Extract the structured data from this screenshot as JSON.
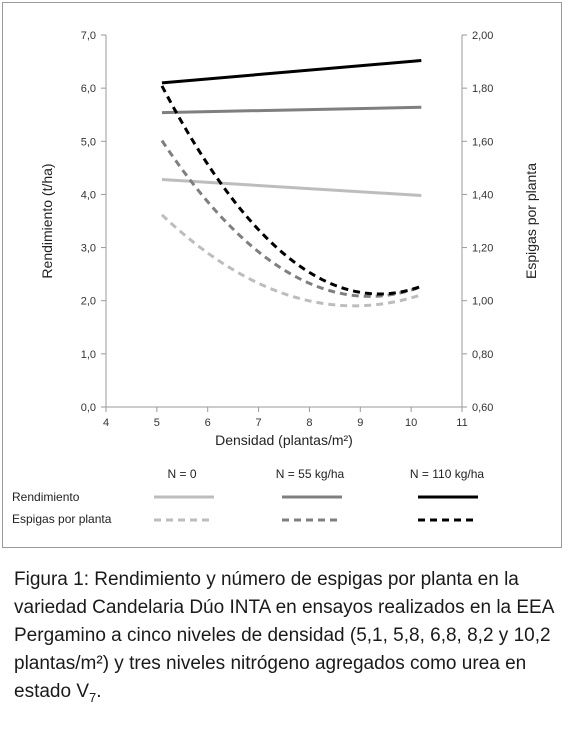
{
  "chart_data": {
    "type": "line",
    "xlabel": "Densidad (plantas/m²)",
    "ylabel": "Rendimiento (t/ha)",
    "y2label": "Espigas por planta",
    "xlim": [
      4,
      11
    ],
    "ylim": [
      0,
      7
    ],
    "y2lim": [
      0.6,
      2.0
    ],
    "x_ticks": [
      "4",
      "5",
      "6",
      "7",
      "8",
      "9",
      "10",
      "11"
    ],
    "y_ticks": [
      "0,0",
      "1,0",
      "2,0",
      "3,0",
      "4,0",
      "5,0",
      "6,0",
      "7,0"
    ],
    "y2_ticks": [
      "0,60",
      "0,80",
      "1,00",
      "1,20",
      "1,40",
      "1,60",
      "1,80",
      "2,00"
    ],
    "grid": false,
    "legend_columns": [
      "N = 0",
      "N = 55 kg/ha",
      "N = 110 kg/ha"
    ],
    "legend_rows": [
      "Rendimiento",
      "Espigas por planta"
    ],
    "series": [
      {
        "label": "Rendimiento N = 0",
        "axis": "left",
        "style": "solid",
        "color": "#bdbdbd",
        "x": [
          5.1,
          10.2
        ],
        "y": [
          4.28,
          3.98
        ]
      },
      {
        "label": "Rendimiento N = 55 kg/ha",
        "axis": "left",
        "style": "solid",
        "color": "#7f7f7f",
        "x": [
          5.1,
          10.2
        ],
        "y": [
          5.54,
          5.64
        ]
      },
      {
        "label": "Rendimiento N = 110 kg/ha",
        "axis": "left",
        "style": "solid",
        "color": "#000000",
        "x": [
          5.1,
          10.2
        ],
        "y": [
          6.1,
          6.52
        ]
      },
      {
        "label": "Espigas por planta N = 0",
        "axis": "right",
        "style": "dashed",
        "color": "#bdbdbd",
        "x": [
          5.1,
          5.8,
          6.8,
          8.2,
          10.2
        ],
        "y": [
          1.33,
          1.2,
          1.08,
          1.0,
          1.02
        ]
      },
      {
        "label": "Espigas por planta N = 55 kg/ha",
        "axis": "right",
        "style": "dashed",
        "color": "#7f7f7f",
        "x": [
          5.1,
          5.8,
          6.8,
          8.2,
          10.2
        ],
        "y": [
          1.61,
          1.41,
          1.21,
          1.06,
          1.05
        ]
      },
      {
        "label": "Espigas por planta N = 110 kg/ha",
        "axis": "right",
        "style": "dashed",
        "color": "#000000",
        "x": [
          5.1,
          5.8,
          6.8,
          8.2,
          10.2
        ],
        "y": [
          1.82,
          1.56,
          1.3,
          1.1,
          1.05
        ]
      }
    ]
  },
  "caption": {
    "text": "Figura 1: Rendimiento y número de espigas por planta en la variedad Candelaria Dúo INTA en ensayos realizados en la EEA Pergamino a cinco niveles de densidad (5,1, 5,8, 6,8, 8,2 y 10,2 plantas/m²) y tres niveles nitrógeno agregados como urea en estado V",
    "subscript": "7",
    "end": "."
  }
}
